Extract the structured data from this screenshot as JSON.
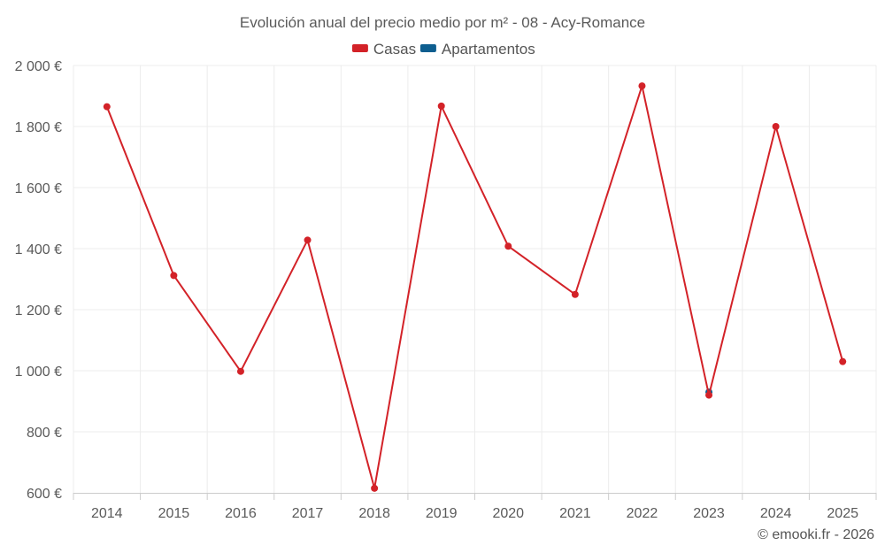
{
  "chart_data": {
    "type": "line",
    "title": "Evolución anual del precio medio por m² - 08 - Acy-Romance",
    "categories": [
      "2014",
      "2015",
      "2016",
      "2017",
      "2018",
      "2019",
      "2020",
      "2021",
      "2022",
      "2023",
      "2024",
      "2025"
    ],
    "series": [
      {
        "name": "Casas",
        "color": "#d32228",
        "values": [
          1865,
          1312,
          998,
          1428,
          615,
          1867,
          1408,
          1250,
          1933,
          920,
          1800,
          1030
        ]
      },
      {
        "name": "Apartamentos",
        "color": "#0e5e8f",
        "values": [
          null,
          null,
          null,
          null,
          null,
          null,
          null,
          null,
          null,
          930,
          null,
          null
        ]
      }
    ],
    "ylim": [
      600,
      2000
    ],
    "yticks": [
      600,
      800,
      1000,
      1200,
      1400,
      1600,
      1800,
      2000
    ],
    "ytick_labels": [
      "600 €",
      "800 €",
      "1 000 €",
      "1 200 €",
      "1 400 €",
      "1 600 €",
      "1 800 €",
      "2 000 €"
    ],
    "xlabel": "",
    "ylabel": "",
    "grid": true,
    "legend": "top-center",
    "credit": "© emooki.fr - 2026"
  }
}
